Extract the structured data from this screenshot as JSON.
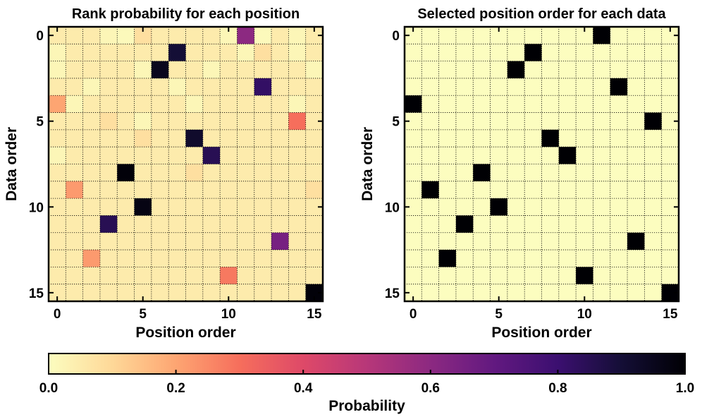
{
  "chart_data": [
    {
      "type": "heatmap",
      "title": "Rank probability for each position",
      "xlabel": "Position order",
      "ylabel": "Data order",
      "x_ticks": [
        0,
        5,
        10,
        15
      ],
      "y_ticks": [
        0,
        5,
        10,
        15
      ],
      "n_rows": 16,
      "n_cols": 16,
      "grid": true,
      "values": [
        [
          0.05,
          0.05,
          0.05,
          0.02,
          0.01,
          0.08,
          0.05,
          0.05,
          0.05,
          0.05,
          0.02,
          0.6,
          0.01,
          0.05,
          0.02,
          0.05
        ],
        [
          0.02,
          0.05,
          0.05,
          0.05,
          0.05,
          0.05,
          0.05,
          0.9,
          0.05,
          0.05,
          0.05,
          0.02,
          0.08,
          0.05,
          0.02,
          0.05
        ],
        [
          0.02,
          0.05,
          0.05,
          0.05,
          0.05,
          0.02,
          0.95,
          0.05,
          0.05,
          0.02,
          0.05,
          0.05,
          0.05,
          0.05,
          0.05,
          0.02
        ],
        [
          0.05,
          0.05,
          0.02,
          0.05,
          0.05,
          0.05,
          0.05,
          0.02,
          0.05,
          0.05,
          0.05,
          0.05,
          0.82,
          0.05,
          0.05,
          0.05
        ],
        [
          0.2,
          0.02,
          0.05,
          0.05,
          0.05,
          0.05,
          0.05,
          0.05,
          0.02,
          0.05,
          0.05,
          0.05,
          0.05,
          0.05,
          0.02,
          0.05
        ],
        [
          0.05,
          0.05,
          0.05,
          0.08,
          0.05,
          0.02,
          0.05,
          0.05,
          0.05,
          0.05,
          0.05,
          0.05,
          0.05,
          0.05,
          0.3,
          0.05
        ],
        [
          0.05,
          0.05,
          0.05,
          0.05,
          0.05,
          0.08,
          0.05,
          0.05,
          0.92,
          0.05,
          0.05,
          0.05,
          0.05,
          0.05,
          0.05,
          0.05
        ],
        [
          0.02,
          0.05,
          0.05,
          0.05,
          0.05,
          0.05,
          0.05,
          0.05,
          0.05,
          0.85,
          0.05,
          0.05,
          0.05,
          0.05,
          0.05,
          0.05
        ],
        [
          0.05,
          0.05,
          0.05,
          0.05,
          0.99,
          0.05,
          0.05,
          0.05,
          0.08,
          0.05,
          0.05,
          0.05,
          0.05,
          0.05,
          0.05,
          0.05
        ],
        [
          0.05,
          0.22,
          0.05,
          0.05,
          0.05,
          0.05,
          0.05,
          0.05,
          0.05,
          0.05,
          0.05,
          0.05,
          0.05,
          0.05,
          0.05,
          0.08
        ],
        [
          0.05,
          0.05,
          0.05,
          0.05,
          0.05,
          0.97,
          0.05,
          0.05,
          0.05,
          0.05,
          0.05,
          0.05,
          0.05,
          0.05,
          0.05,
          0.05
        ],
        [
          0.05,
          0.05,
          0.05,
          0.85,
          0.05,
          0.05,
          0.05,
          0.05,
          0.05,
          0.05,
          0.05,
          0.05,
          0.05,
          0.05,
          0.05,
          0.05
        ],
        [
          0.05,
          0.05,
          0.05,
          0.05,
          0.05,
          0.05,
          0.05,
          0.05,
          0.05,
          0.05,
          0.05,
          0.05,
          0.05,
          0.65,
          0.05,
          0.05
        ],
        [
          0.05,
          0.05,
          0.22,
          0.05,
          0.05,
          0.05,
          0.05,
          0.05,
          0.05,
          0.05,
          0.05,
          0.05,
          0.05,
          0.05,
          0.05,
          0.05
        ],
        [
          0.05,
          0.05,
          0.05,
          0.05,
          0.05,
          0.05,
          0.05,
          0.05,
          0.05,
          0.05,
          0.28,
          0.05,
          0.05,
          0.05,
          0.05,
          0.05
        ],
        [
          0.05,
          0.05,
          0.05,
          0.05,
          0.05,
          0.05,
          0.05,
          0.05,
          0.05,
          0.05,
          0.05,
          0.05,
          0.05,
          0.05,
          0.05,
          0.99
        ]
      ]
    },
    {
      "type": "heatmap",
      "title": "Selected position order for each data",
      "xlabel": "Position order",
      "ylabel": "Data order",
      "x_ticks": [
        0,
        5,
        10,
        15
      ],
      "y_ticks": [
        0,
        5,
        10,
        15
      ],
      "n_rows": 16,
      "n_cols": 16,
      "grid": true,
      "selected_positions": [
        11,
        7,
        6,
        12,
        0,
        14,
        8,
        9,
        4,
        1,
        5,
        3,
        13,
        2,
        10,
        15
      ]
    }
  ],
  "colorbar": {
    "label": "Probability",
    "colormap": "magma_r",
    "range": [
      0.0,
      1.0
    ],
    "ticks": [
      "0.0",
      "0.2",
      "0.4",
      "0.6",
      "0.8",
      "1.0"
    ]
  }
}
